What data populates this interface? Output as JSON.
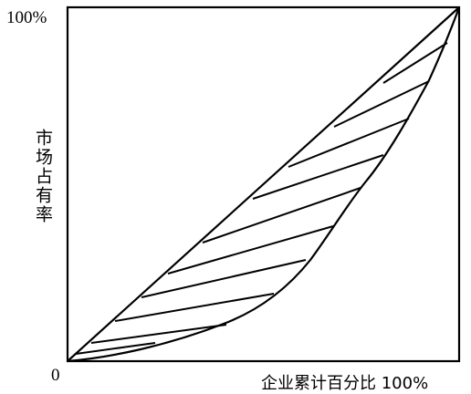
{
  "diagram": {
    "y_max_label": "100%",
    "origin_label": "0",
    "y_axis_label": "市场占有率",
    "x_axis_label": "企业累计百分比 100%"
  },
  "colors": {
    "ink": "#000000",
    "background": "#ffffff"
  }
}
